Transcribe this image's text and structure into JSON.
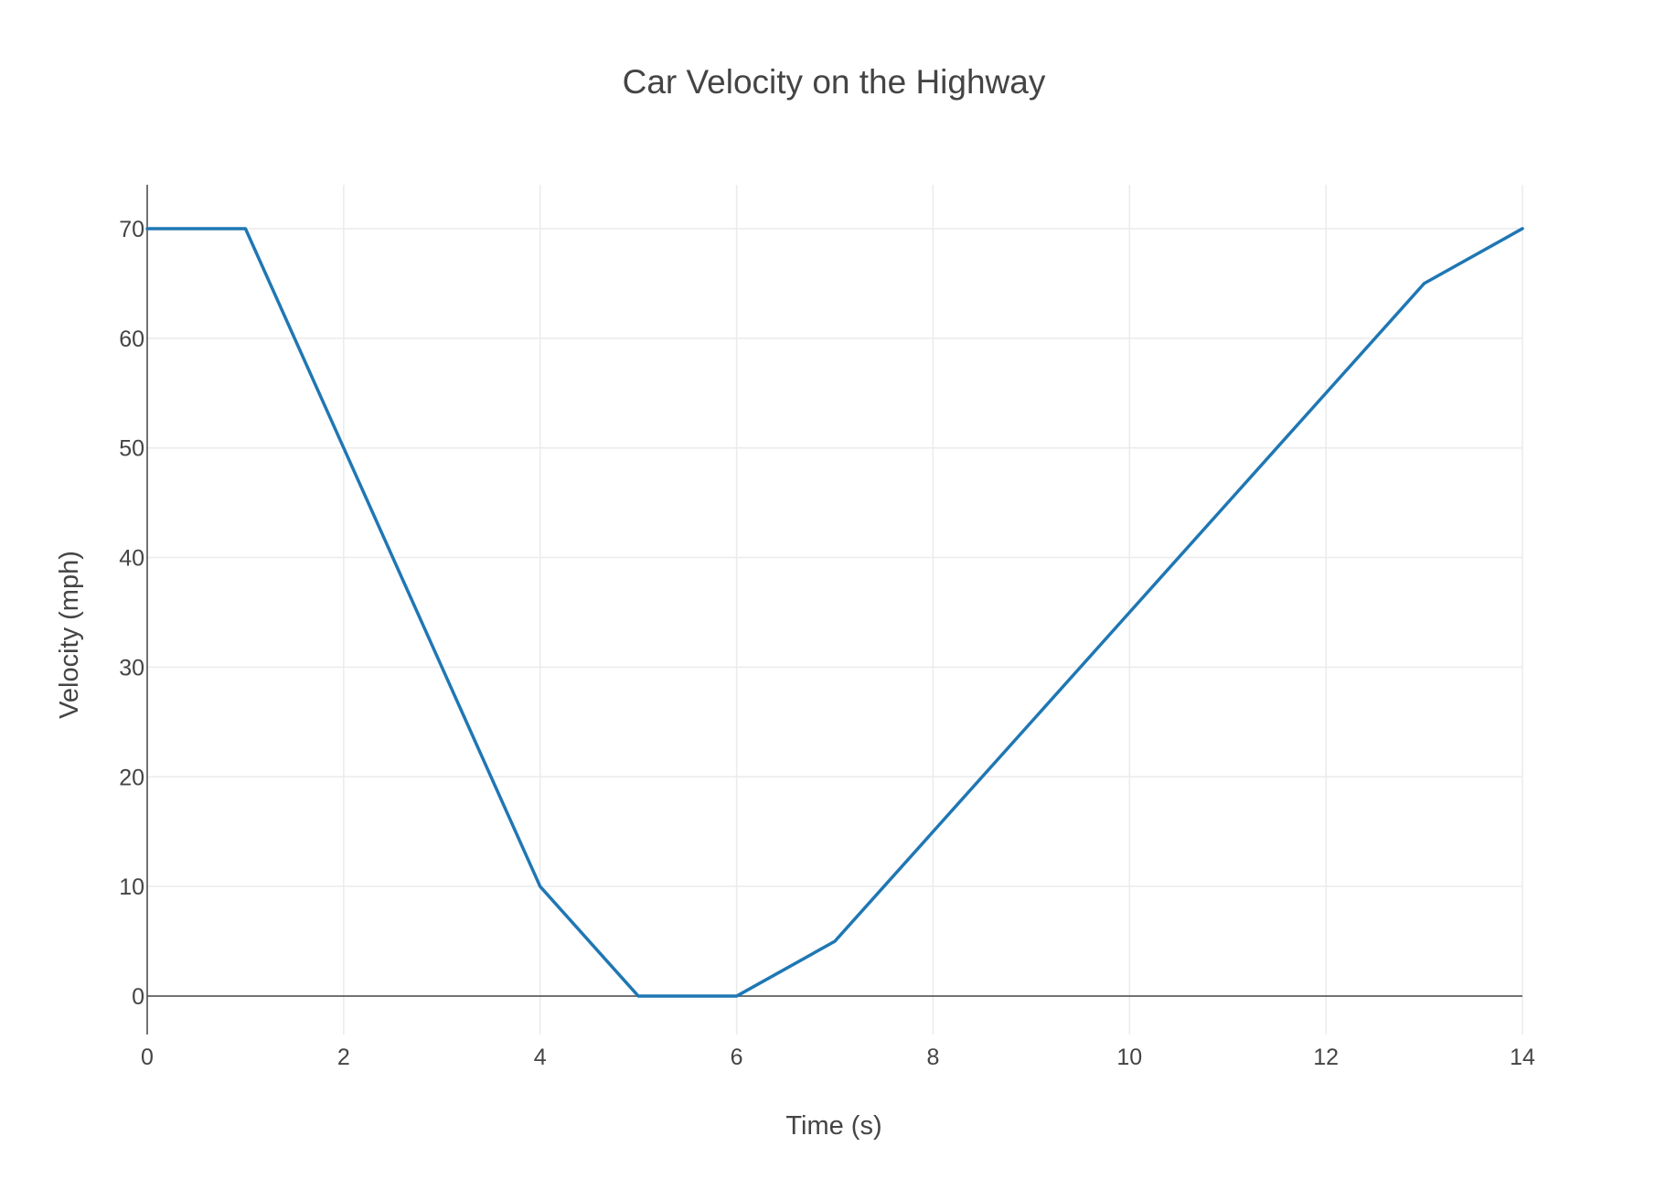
{
  "chart_data": {
    "type": "line",
    "title": "Car Velocity on the Highway",
    "xlabel": "Time (s)",
    "ylabel": "Velocity (mph)",
    "xlim": [
      0,
      14
    ],
    "ylim": [
      -3.5,
      74
    ],
    "x_ticks": [
      0,
      2,
      4,
      6,
      8,
      10,
      12,
      14
    ],
    "y_ticks": [
      0,
      10,
      20,
      30,
      40,
      50,
      60,
      70
    ],
    "grid": true,
    "series": [
      {
        "color": "#1f77b4",
        "x": [
          0,
          1,
          2,
          3,
          4,
          5,
          6,
          7,
          8,
          9,
          10,
          11,
          12,
          13,
          14
        ],
        "y": [
          70,
          70,
          50,
          30,
          10,
          0,
          0,
          5,
          15,
          25,
          35,
          45,
          55,
          65,
          70
        ]
      }
    ]
  }
}
